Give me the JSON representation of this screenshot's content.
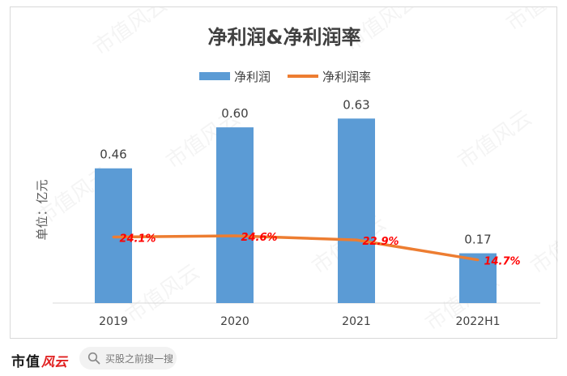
{
  "chart_data": {
    "type": "bar+line",
    "title": "净利润&净利润率",
    "ylabel": "单位：亿元",
    "categories": [
      "2019",
      "2020",
      "2021",
      "2022H1"
    ],
    "series": [
      {
        "name": "净利润",
        "type": "bar",
        "values": [
          0.46,
          0.6,
          0.63,
          0.17
        ],
        "labels": [
          "0.46",
          "0.60",
          "0.63",
          "0.17"
        ],
        "color": "#5b9bd5"
      },
      {
        "name": "净利润率",
        "type": "line",
        "values": [
          24.1,
          24.6,
          22.9,
          14.7
        ],
        "labels": [
          "24.1%",
          "24.6%",
          "22.9%",
          "14.7%"
        ],
        "color": "#ed7d31",
        "label_color": "#ff0000"
      }
    ],
    "ylim": [
      0,
      0.7
    ],
    "legend": "top",
    "grid": false
  },
  "watermark": "市值风云",
  "footer": {
    "brand_name": "市值",
    "brand_script": "风云",
    "search_text": "买股之前搜一搜",
    "search_icon": "search-icon"
  }
}
